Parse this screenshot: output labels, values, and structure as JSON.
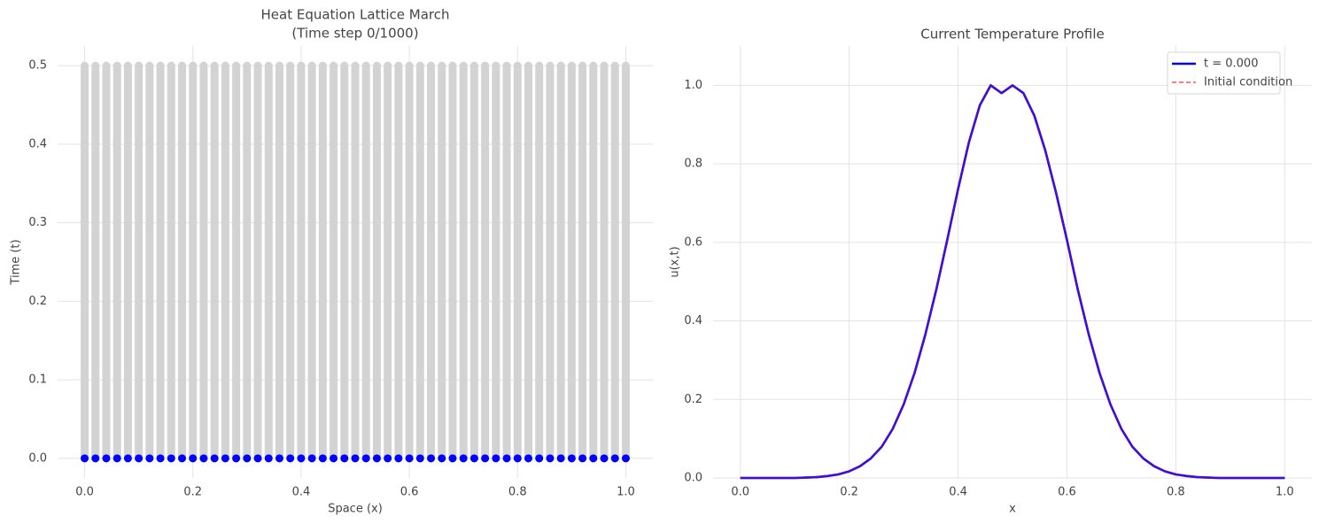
{
  "chart_data": [
    {
      "type": "scatter",
      "title": "Heat Equation Lattice March\n(Time step 0/1000)",
      "xlabel": "Space (x)",
      "ylabel": "Time (t)",
      "xlim": [
        -0.05,
        1.05
      ],
      "ylim": [
        -0.025,
        0.525
      ],
      "xticks": [
        0.0,
        0.2,
        0.4,
        0.6,
        0.8,
        1.0
      ],
      "xtick_labels": [
        "0.0",
        "0.2",
        "0.4",
        "0.6",
        "0.8",
        "1.0"
      ],
      "yticks": [
        0.0,
        0.1,
        0.2,
        0.3,
        0.4,
        0.5
      ],
      "ytick_labels": [
        "0.0",
        "0.1",
        "0.2",
        "0.3",
        "0.4",
        "0.5"
      ],
      "grid": true,
      "lattice": {
        "x_start": 0.0,
        "x_end": 1.0,
        "x_points": 51,
        "t_start": 0.0,
        "t_end": 0.5,
        "color": "#d3d3d3"
      },
      "current_row": {
        "t": 0.0,
        "color": "#0000ff"
      }
    },
    {
      "type": "line",
      "title": "Current Temperature Profile",
      "xlabel": "x",
      "ylabel": "u(x,t)",
      "xlim": [
        -0.05,
        1.05
      ],
      "ylim": [
        0.0,
        1.1
      ],
      "xticks": [
        0.0,
        0.2,
        0.4,
        0.6,
        0.8,
        1.0
      ],
      "xtick_labels": [
        "0.0",
        "0.2",
        "0.4",
        "0.6",
        "0.8",
        "1.0"
      ],
      "yticks": [
        0.0,
        0.2,
        0.4,
        0.6,
        0.8,
        1.0
      ],
      "ytick_labels": [
        "0.0",
        "0.2",
        "0.4",
        "0.6",
        "0.8",
        "1.0"
      ],
      "grid": true,
      "legend_position": "top-right",
      "x": [
        0.0,
        0.02,
        0.04,
        0.06,
        0.08,
        0.1,
        0.12,
        0.14,
        0.16,
        0.18,
        0.2,
        0.22,
        0.24,
        0.26,
        0.28,
        0.3,
        0.32,
        0.34,
        0.36,
        0.38,
        0.4,
        0.42,
        0.44,
        0.46,
        0.48,
        0.5,
        0.52,
        0.54,
        0.56,
        0.58,
        0.6,
        0.62,
        0.64,
        0.66,
        0.68,
        0.7,
        0.72,
        0.74,
        0.76,
        0.78,
        0.8,
        0.82,
        0.84,
        0.86,
        0.88,
        0.9,
        0.92,
        0.94,
        0.96,
        0.98,
        1.0
      ],
      "series": [
        {
          "name": "t = 0.000",
          "color": "#0000ff",
          "style": "solid",
          "values": [
            0.0,
            0.0,
            0.0,
            0.0,
            0.0,
            0.0,
            0.001,
            0.002,
            0.005,
            0.009,
            0.017,
            0.03,
            0.05,
            0.08,
            0.125,
            0.187,
            0.267,
            0.366,
            0.48,
            0.606,
            0.735,
            0.855,
            0.949,
            1.0,
            0.98,
            1.0,
            0.98,
            0.923,
            0.835,
            0.726,
            0.606,
            0.48,
            0.366,
            0.267,
            0.187,
            0.125,
            0.08,
            0.05,
            0.03,
            0.017,
            0.009,
            0.005,
            0.002,
            0.001,
            0.0,
            0.0,
            0.0,
            0.0,
            0.0,
            0.0,
            0.0
          ]
        },
        {
          "name": "Initial condition",
          "color": "#ff6b6b",
          "style": "dashed",
          "values": [
            0.0,
            0.0,
            0.0,
            0.0,
            0.0,
            0.0,
            0.001,
            0.002,
            0.005,
            0.009,
            0.017,
            0.03,
            0.05,
            0.08,
            0.125,
            0.187,
            0.267,
            0.366,
            0.48,
            0.606,
            0.735,
            0.855,
            0.949,
            1.0,
            0.98,
            1.0,
            0.98,
            0.923,
            0.835,
            0.726,
            0.606,
            0.48,
            0.366,
            0.267,
            0.187,
            0.125,
            0.08,
            0.05,
            0.03,
            0.017,
            0.009,
            0.005,
            0.002,
            0.001,
            0.0,
            0.0,
            0.0,
            0.0,
            0.0,
            0.0,
            0.0
          ]
        }
      ]
    }
  ]
}
